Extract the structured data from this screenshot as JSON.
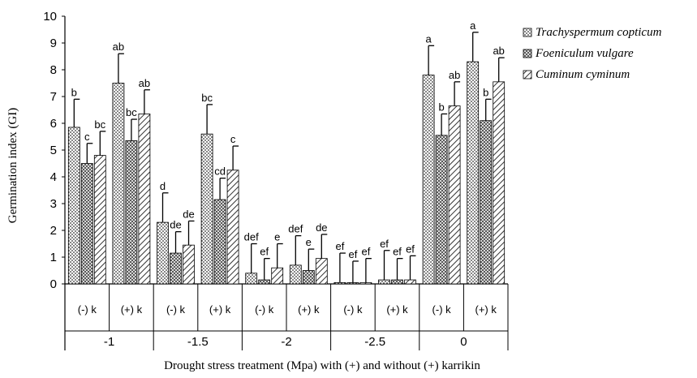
{
  "chart_data": {
    "type": "bar",
    "xlabel": "Drought stress treatment (Mpa) with (+) and without (+) karrikin",
    "ylabel": "Germination index (GI)",
    "ylim": [
      0,
      10
    ],
    "yticks": [
      0,
      1,
      2,
      3,
      4,
      5,
      6,
      7,
      8,
      9,
      10
    ],
    "groups": [
      "-1",
      "-1.5",
      "-2",
      "-2.5",
      "0"
    ],
    "subgroups": [
      "(-) k",
      "(+) k"
    ],
    "categories": [
      "-1 (-) k",
      "-1 (+) k",
      "-1.5 (-) k",
      "-1.5 (+) k",
      "-2 (-) k",
      "-2 (+) k",
      "-2.5 (-) k",
      "-2.5 (+) k",
      "0 (-) k",
      "0 (+) k"
    ],
    "legend_position": "top-right",
    "series": [
      {
        "name": "Trachyspermum copticum",
        "pattern": "dots",
        "values": [
          5.85,
          7.5,
          2.3,
          5.6,
          0.4,
          0.7,
          0.05,
          0.15,
          7.8,
          8.3
        ],
        "errors": [
          1.05,
          1.1,
          1.1,
          1.1,
          1.1,
          1.1,
          1.1,
          1.1,
          1.1,
          1.1
        ],
        "labels": [
          "b",
          "ab",
          "d",
          "bc",
          "def",
          "def",
          "ef",
          "ef",
          "a",
          "a"
        ]
      },
      {
        "name": "Foeniculum vulgare",
        "pattern": "checker",
        "values": [
          4.5,
          5.35,
          1.15,
          3.15,
          0.15,
          0.5,
          0.05,
          0.15,
          5.55,
          6.1
        ],
        "errors": [
          0.75,
          0.8,
          0.8,
          0.8,
          0.8,
          0.8,
          0.8,
          0.8,
          0.8,
          0.8
        ],
        "labels": [
          "c",
          "bc",
          "de",
          "cd",
          "ef",
          "e",
          "ef",
          "ef",
          "b",
          "b"
        ]
      },
      {
        "name": "Cuminum cyminum",
        "pattern": "hatch",
        "values": [
          4.8,
          6.35,
          1.45,
          4.25,
          0.6,
          0.95,
          0.05,
          0.15,
          6.65,
          7.55
        ],
        "errors": [
          0.9,
          0.9,
          0.9,
          0.9,
          0.9,
          0.9,
          0.9,
          0.9,
          0.9,
          0.9
        ],
        "labels": [
          "bc",
          "ab",
          "de",
          "c",
          "e",
          "de",
          "ef",
          "ef",
          "ab",
          "ab"
        ]
      }
    ]
  }
}
